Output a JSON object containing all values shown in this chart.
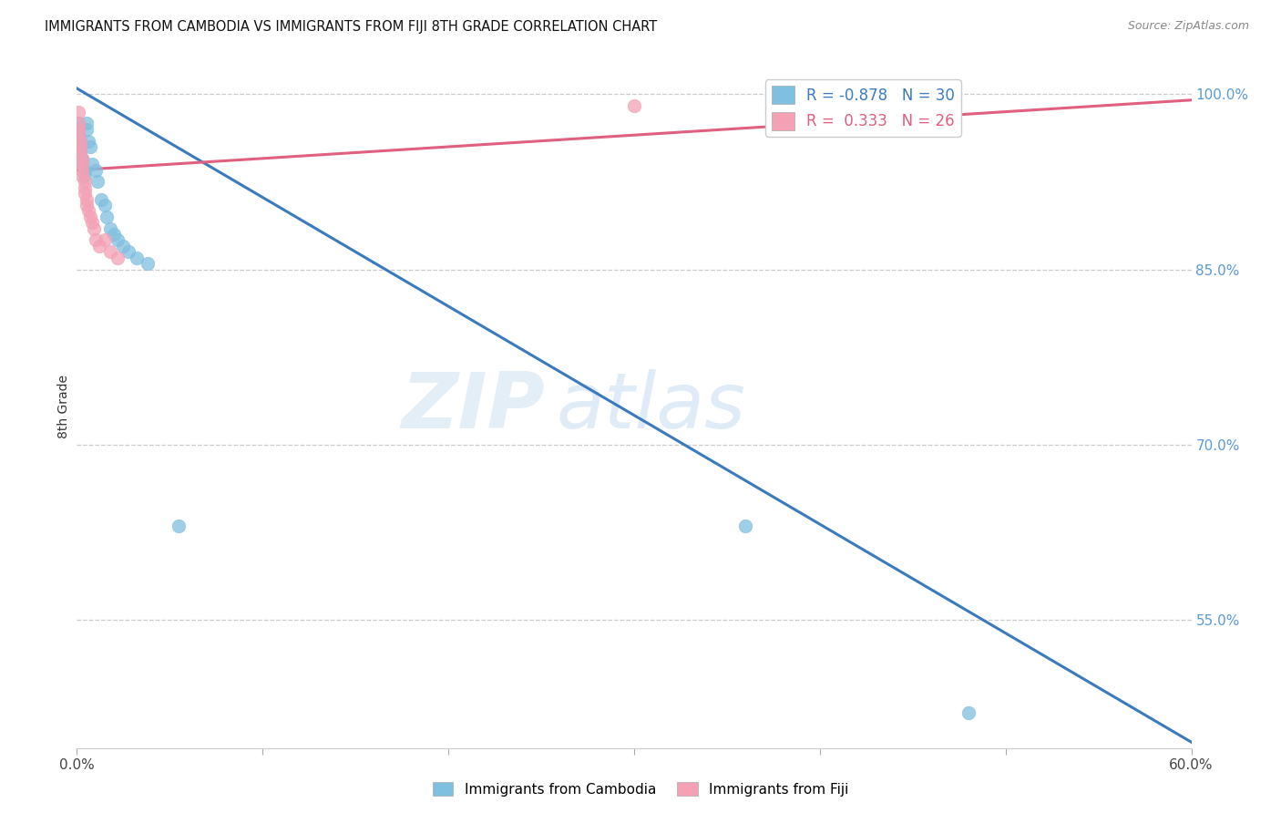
{
  "title": "IMMIGRANTS FROM CAMBODIA VS IMMIGRANTS FROM FIJI 8TH GRADE CORRELATION CHART",
  "source": "Source: ZipAtlas.com",
  "ylabel": "8th Grade",
  "ylabel_right_ticks": [
    100.0,
    85.0,
    70.0,
    55.0
  ],
  "xlim": [
    0.0,
    0.6
  ],
  "ylim": [
    0.44,
    1.025
  ],
  "legend_blue_r": "-0.878",
  "legend_blue_n": "30",
  "legend_pink_r": "0.333",
  "legend_pink_n": "26",
  "blue_color": "#7fbfdf",
  "pink_color": "#f4a0b5",
  "blue_line_color": "#3a7bbf",
  "pink_line_color": "#e06080",
  "watermark_zip": "ZIP",
  "watermark_atlas": "atlas",
  "blue_line_x": [
    0.0,
    0.6
  ],
  "blue_line_y": [
    1.005,
    0.445
  ],
  "pink_line_x": [
    0.0,
    0.6
  ],
  "pink_line_y": [
    0.935,
    0.995
  ],
  "blue_scatter_x": [
    0.001,
    0.001,
    0.001,
    0.002,
    0.002,
    0.002,
    0.003,
    0.003,
    0.004,
    0.004,
    0.005,
    0.005,
    0.006,
    0.007,
    0.008,
    0.01,
    0.011,
    0.013,
    0.015,
    0.016,
    0.018,
    0.02,
    0.022,
    0.025,
    0.028,
    0.032,
    0.038,
    0.055,
    0.36,
    0.48
  ],
  "blue_scatter_y": [
    0.975,
    0.97,
    0.965,
    0.96,
    0.955,
    0.95,
    0.945,
    0.94,
    0.935,
    0.93,
    0.975,
    0.97,
    0.96,
    0.955,
    0.94,
    0.935,
    0.925,
    0.91,
    0.905,
    0.895,
    0.885,
    0.88,
    0.875,
    0.87,
    0.865,
    0.86,
    0.855,
    0.63,
    0.63,
    0.47
  ],
  "pink_scatter_x": [
    0.001,
    0.001,
    0.001,
    0.001,
    0.002,
    0.002,
    0.002,
    0.003,
    0.003,
    0.003,
    0.003,
    0.004,
    0.004,
    0.004,
    0.005,
    0.005,
    0.006,
    0.007,
    0.008,
    0.009,
    0.01,
    0.012,
    0.015,
    0.018,
    0.022,
    0.3
  ],
  "pink_scatter_y": [
    0.985,
    0.975,
    0.97,
    0.965,
    0.96,
    0.955,
    0.95,
    0.945,
    0.94,
    0.935,
    0.93,
    0.925,
    0.92,
    0.915,
    0.91,
    0.905,
    0.9,
    0.895,
    0.89,
    0.885,
    0.875,
    0.87,
    0.875,
    0.865,
    0.86,
    0.99
  ]
}
